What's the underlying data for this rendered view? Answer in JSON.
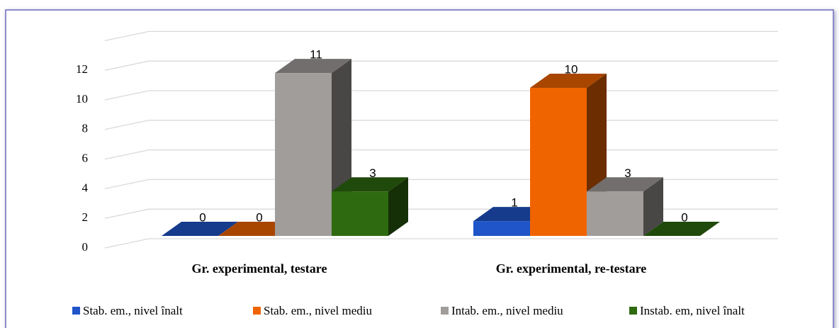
{
  "chart_data": {
    "type": "bar3d",
    "categories": [
      "Gr. experimental, testare",
      "Gr. experimental, re-testare"
    ],
    "series": [
      {
        "name": "Stab. em., nivel înalt",
        "color": "#1f55c8",
        "values": [
          0,
          1
        ]
      },
      {
        "name": "Stab. em., nivel mediu",
        "color": "#f06400",
        "values": [
          0,
          10
        ]
      },
      {
        "name": "Intab. em., nivel mediu",
        "color": "#a19d9b",
        "values": [
          11,
          3
        ]
      },
      {
        "name": "Instab. em, nivel înalt",
        "color": "#2e6a10",
        "values": [
          3,
          0
        ]
      }
    ],
    "ylim": [
      0,
      14
    ],
    "yticks": [
      0,
      2,
      4,
      6,
      8,
      10,
      12
    ],
    "grid": true,
    "legend": "bottom"
  }
}
